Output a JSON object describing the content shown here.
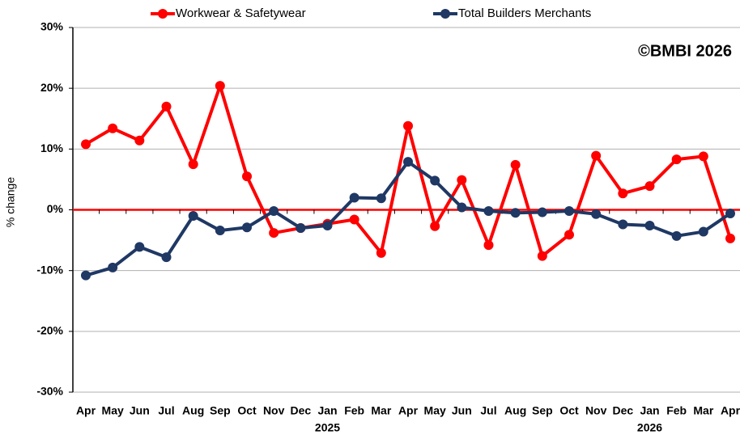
{
  "chart_data": {
    "type": "line",
    "ylabel": "% change",
    "annotation": "©BMBI 2026",
    "categories": [
      "Apr",
      "May",
      "Jun",
      "Jul",
      "Aug",
      "Sep",
      "Oct",
      "Nov",
      "Dec",
      "Jan",
      "Feb",
      "Mar",
      "Apr",
      "May",
      "Jun",
      "Jul",
      "Aug",
      "Sep",
      "Oct",
      "Nov",
      "Dec",
      "Jan",
      "Feb",
      "Mar",
      "Apr"
    ],
    "years": [
      {
        "label": "2025",
        "category": 9
      },
      {
        "label": "2026",
        "category": 21
      }
    ],
    "series": [
      {
        "name": "Workwear & Safetywear",
        "color": "#ff0000",
        "values": [
          10.8,
          13.4,
          11.4,
          17,
          7.5,
          20.4,
          5.5,
          -3.8,
          -3,
          -2.3,
          -1.6,
          -7.1,
          13.8,
          -2.7,
          4.9,
          -5.8,
          7.4,
          -7.6,
          -4.1,
          8.9,
          2.7,
          3.9,
          8.3,
          8.8,
          -4.7
        ]
      },
      {
        "name": "Total Builders Merchants",
        "color": "#1f3864",
        "values": [
          -10.8,
          -9.5,
          -6.1,
          -7.8,
          -1,
          -3.4,
          -2.9,
          -0.2,
          -3,
          -2.6,
          2,
          1.9,
          7.9,
          4.8,
          0.4,
          -0.2,
          -0.5,
          -0.4,
          -0.2,
          -0.7,
          -2.4,
          -2.6,
          -4.3,
          -3.6,
          -0.6
        ]
      }
    ],
    "ylim": [
      -30,
      30
    ],
    "yticks": [
      {
        "value": -30,
        "label": "-30%"
      },
      {
        "value": -20,
        "label": "-20%"
      },
      {
        "value": -10,
        "label": "-10%"
      },
      {
        "value": 0,
        "label": "0%"
      },
      {
        "value": 10,
        "label": "10%"
      },
      {
        "value": 20,
        "label": "20%"
      },
      {
        "value": 30,
        "label": "30%"
      }
    ],
    "grid": true,
    "zero_line_color": "#ff0000"
  }
}
